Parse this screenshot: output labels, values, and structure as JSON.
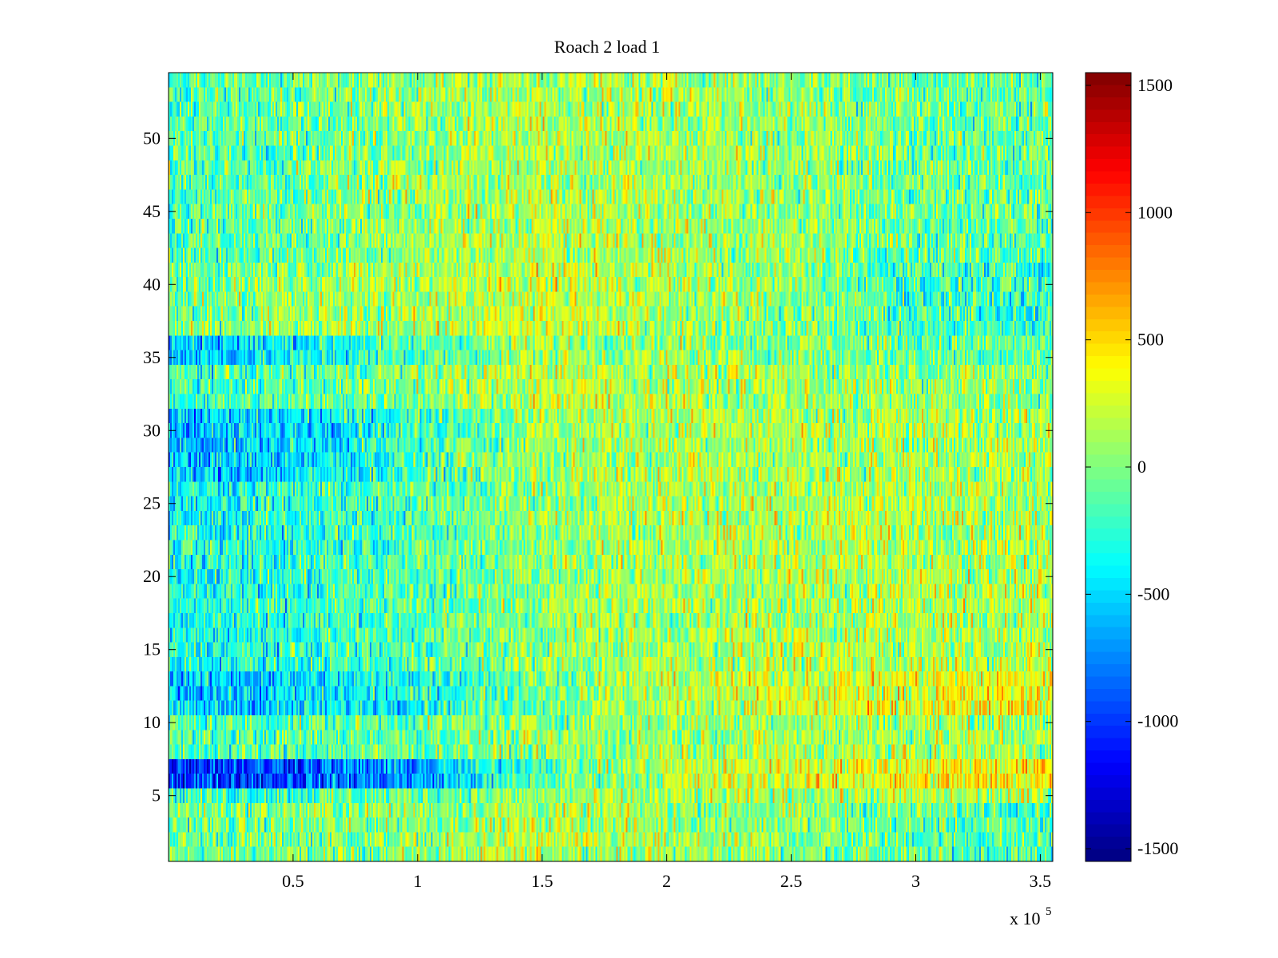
{
  "chart_data": {
    "type": "heatmap",
    "title": "Roach 2 load 1",
    "xlabel": "",
    "ylabel": "",
    "x_exponent_label": "x 10",
    "x_exponent": "5",
    "xlim": [
      0,
      355000
    ],
    "ylim": [
      0.5,
      54.5
    ],
    "rows": 54,
    "x_ticks": [
      {
        "value": 50000,
        "label": "0.5"
      },
      {
        "value": 100000,
        "label": "1"
      },
      {
        "value": 150000,
        "label": "1.5"
      },
      {
        "value": 200000,
        "label": "2"
      },
      {
        "value": 250000,
        "label": "2.5"
      },
      {
        "value": 300000,
        "label": "3"
      },
      {
        "value": 350000,
        "label": "3.5"
      }
    ],
    "y_ticks": [
      {
        "value": 5,
        "label": "5"
      },
      {
        "value": 10,
        "label": "10"
      },
      {
        "value": 15,
        "label": "15"
      },
      {
        "value": 20,
        "label": "20"
      },
      {
        "value": 25,
        "label": "25"
      },
      {
        "value": 30,
        "label": "30"
      },
      {
        "value": 35,
        "label": "35"
      },
      {
        "value": 40,
        "label": "40"
      },
      {
        "value": 45,
        "label": "45"
      },
      {
        "value": 50,
        "label": "50"
      }
    ],
    "colorbar": {
      "colormap": "jet",
      "clim": [
        -1550,
        1550
      ],
      "ticks": [
        {
          "value": 1500,
          "label": "1500"
        },
        {
          "value": 1000,
          "label": "1000"
        },
        {
          "value": 500,
          "label": "500"
        },
        {
          "value": 0,
          "label": "0"
        },
        {
          "value": -500,
          "label": "-500"
        },
        {
          "value": -1000,
          "label": "-1000"
        },
        {
          "value": -1500,
          "label": "-1500"
        }
      ]
    },
    "row_mean_profile": {
      "x_knots": [
        0,
        25000,
        50000,
        100000,
        150000,
        200000,
        250000,
        300000,
        355000
      ],
      "rows": [
        {
          "y": [
            1,
            3
          ],
          "means": [
            -80,
            -60,
            -40,
            40,
            180,
            80,
            40,
            -120,
            -160
          ]
        },
        {
          "y": [
            4,
            4
          ],
          "means": [
            0,
            20,
            40,
            80,
            120,
            80,
            20,
            -80,
            -120
          ]
        },
        {
          "y": [
            5,
            5
          ],
          "means": [
            -200,
            -200,
            -180,
            -60,
            40,
            80,
            120,
            120,
            140
          ]
        },
        {
          "y": [
            6,
            7
          ],
          "means": [
            -950,
            -950,
            -900,
            -700,
            -100,
            150,
            300,
            380,
            420
          ]
        },
        {
          "y": [
            8,
            10
          ],
          "means": [
            -150,
            -150,
            -120,
            -60,
            40,
            100,
            120,
            120,
            120
          ]
        },
        {
          "y": [
            11,
            13
          ],
          "means": [
            -550,
            -550,
            -520,
            -300,
            0,
            150,
            260,
            320,
            350
          ]
        },
        {
          "y": [
            14,
            26
          ],
          "means": [
            -320,
            -300,
            -260,
            -140,
            50,
            130,
            160,
            160,
            140
          ]
        },
        {
          "y": [
            27,
            31
          ],
          "means": [
            -580,
            -560,
            -480,
            -200,
            100,
            150,
            120,
            120,
            120
          ]
        },
        {
          "y": [
            32,
            34
          ],
          "means": [
            -200,
            -180,
            -120,
            40,
            220,
            160,
            100,
            60,
            40
          ]
        },
        {
          "y": [
            35,
            36
          ],
          "means": [
            -550,
            -500,
            -400,
            -160,
            120,
            80,
            20,
            -60,
            -100
          ]
        },
        {
          "y": [
            37,
            41
          ],
          "means": [
            -60,
            0,
            60,
            140,
            240,
            140,
            40,
            -200,
            -260
          ]
        },
        {
          "y": [
            42,
            54
          ],
          "means": [
            -160,
            -120,
            -60,
            80,
            160,
            120,
            60,
            -60,
            -80
          ]
        }
      ],
      "noise_amplitude": 240
    }
  }
}
